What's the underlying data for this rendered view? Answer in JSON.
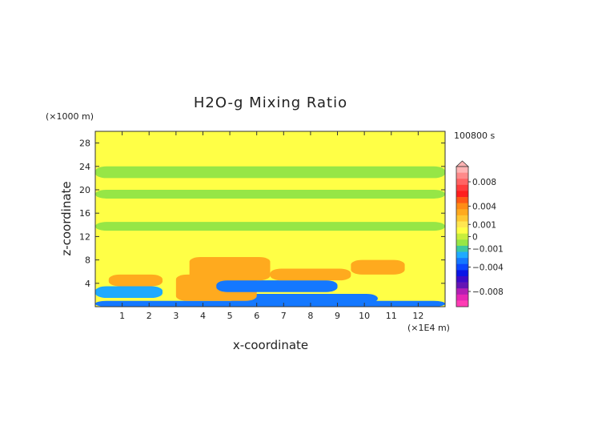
{
  "chart_data": {
    "type": "heatmap",
    "title": "H2O-g Mixing Ratio",
    "time_label": "100800 s",
    "xlabel": "x-coordinate",
    "ylabel": "z-coordinate",
    "x_unit": "(×1E4 m)",
    "y_unit": "(×1000 m)",
    "xlim": [
      0,
      13
    ],
    "ylim": [
      0,
      30
    ],
    "x_ticks": [
      "1",
      "2",
      "3",
      "4",
      "5",
      "6",
      "7",
      "8",
      "9",
      "10",
      "11",
      "12"
    ],
    "y_ticks": [
      "4",
      "8",
      "12",
      "16",
      "20",
      "24",
      "28"
    ],
    "grid": false,
    "colorbar": {
      "placement": "right",
      "levels": [
        0.01,
        0.009,
        0.008,
        0.007,
        0.006,
        0.005,
        0.004,
        0.003,
        0.002,
        0.001,
        0.0005,
        0,
        -0.0005,
        -0.001,
        -0.002,
        -0.003,
        -0.004,
        -0.005,
        -0.006,
        -0.007,
        -0.008,
        -0.009,
        -0.01
      ],
      "colors": [
        "#ffb4b4",
        "#ff8a8a",
        "#ff6464",
        "#ff3c3c",
        "#ff1e1e",
        "#ff5a14",
        "#ff8c14",
        "#ffaa1e",
        "#ffc832",
        "#ffe650",
        "#ffff46",
        "#c8ee3c",
        "#96e646",
        "#3cc8a0",
        "#1eaaff",
        "#1478ff",
        "#0a46ff",
        "#0a14e6",
        "#3c0ac8",
        "#6414b4",
        "#b41eb4",
        "#e628b4",
        "#ff3cb4"
      ],
      "tick_labels": [
        {
          "value": 0.008,
          "text": "0.008"
        },
        {
          "value": 0.004,
          "text": "0.004"
        },
        {
          "value": 0.001,
          "text": "0.001"
        },
        {
          "value": 0,
          "text": "0"
        },
        {
          "value": -0.001,
          "text": "−0.001"
        },
        {
          "value": -0.004,
          "text": "−0.004"
        },
        {
          "value": -0.008,
          "text": "−0.008"
        }
      ]
    },
    "field_description_bands": [
      {
        "z": [
          0,
          1
        ],
        "x": [
          0,
          13
        ],
        "value": -0.003
      },
      {
        "z": [
          0.6,
          2.2
        ],
        "x": [
          5,
          10.5
        ],
        "value": -0.003
      },
      {
        "z": [
          1.5,
          3.5
        ],
        "x": [
          0,
          2.5
        ],
        "value": -0.002
      },
      {
        "z": [
          1,
          5.5
        ],
        "x": [
          3,
          6
        ],
        "value": 0.003
      },
      {
        "z": [
          2.5,
          4.5
        ],
        "x": [
          4.5,
          9
        ],
        "value": -0.003
      },
      {
        "z": [
          3.5,
          5.5
        ],
        "x": [
          0.5,
          2.5
        ],
        "value": 0.003
      },
      {
        "z": [
          4.5,
          8.5
        ],
        "x": [
          3.5,
          6.5
        ],
        "value": 0.003
      },
      {
        "z": [
          4.5,
          6.5
        ],
        "x": [
          6.5,
          9.5
        ],
        "value": 0.003
      },
      {
        "z": [
          5.5,
          8
        ],
        "x": [
          9.5,
          11.5
        ],
        "value": 0.003
      },
      {
        "z": [
          9,
          12.5
        ],
        "x": [
          0,
          13
        ],
        "value": 0.0006
      },
      {
        "z": [
          13,
          14.5
        ],
        "x": [
          0,
          13
        ],
        "value": -0.0004
      },
      {
        "z": [
          16,
          18
        ],
        "x": [
          0,
          13
        ],
        "value": 0.0006
      },
      {
        "z": [
          18.5,
          20
        ],
        "x": [
          0,
          13
        ],
        "value": -0.0004
      },
      {
        "z": [
          20.5,
          21
        ],
        "x": [
          0,
          13
        ],
        "value": 0.0006
      },
      {
        "z": [
          22,
          24
        ],
        "x": [
          0,
          13
        ],
        "value": -0.0004
      },
      {
        "z": [
          25,
          28
        ],
        "x": [
          0,
          13
        ],
        "value": 0.0006
      }
    ]
  }
}
